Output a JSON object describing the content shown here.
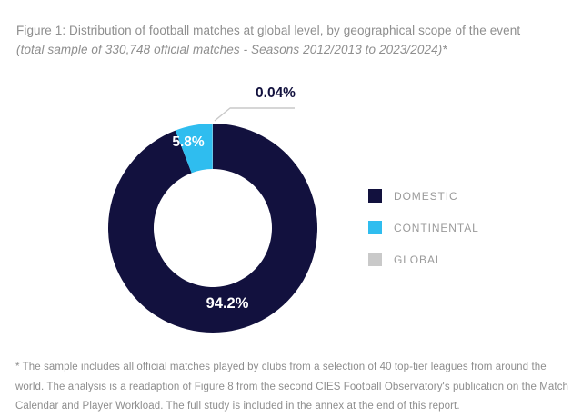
{
  "figure": {
    "title": "Figure 1: Distribution of football matches at global level, by geographical scope of the event",
    "subtitle": "(total sample of 330,748 official matches - Seasons 2012/2013 to 2023/2024)*",
    "footnote": "* The sample includes all official matches played by clubs from a selection of 40 top-tier leagues from around the world.  The analysis is a readaption of Figure 8 from the second CIES Football Observatory's publication on the Match Calendar and Player Workload. The full study is included in the annex at the end of this report."
  },
  "chart_data": {
    "type": "pie",
    "variant": "donut",
    "title": "Distribution of football matches at global level, by geographical scope of the event",
    "total_sample": "330,748",
    "legend_position": "right",
    "slices": [
      {
        "label": "DOMESTIC",
        "value": 94.2,
        "value_label": "94.2%",
        "color": "#12113e"
      },
      {
        "label": "CONTINENTAL",
        "value": 5.8,
        "value_label": "5.8%",
        "color": "#2fbdef"
      },
      {
        "label": "GLOBAL",
        "value": 0.04,
        "value_label": "0.04%",
        "color": "#c9c9c9"
      }
    ]
  },
  "colors": {
    "background": "#ffffff",
    "title_text": "#8e8e8e",
    "legend_text": "#9a9a9a",
    "leader_line": "#c9c9c9"
  }
}
